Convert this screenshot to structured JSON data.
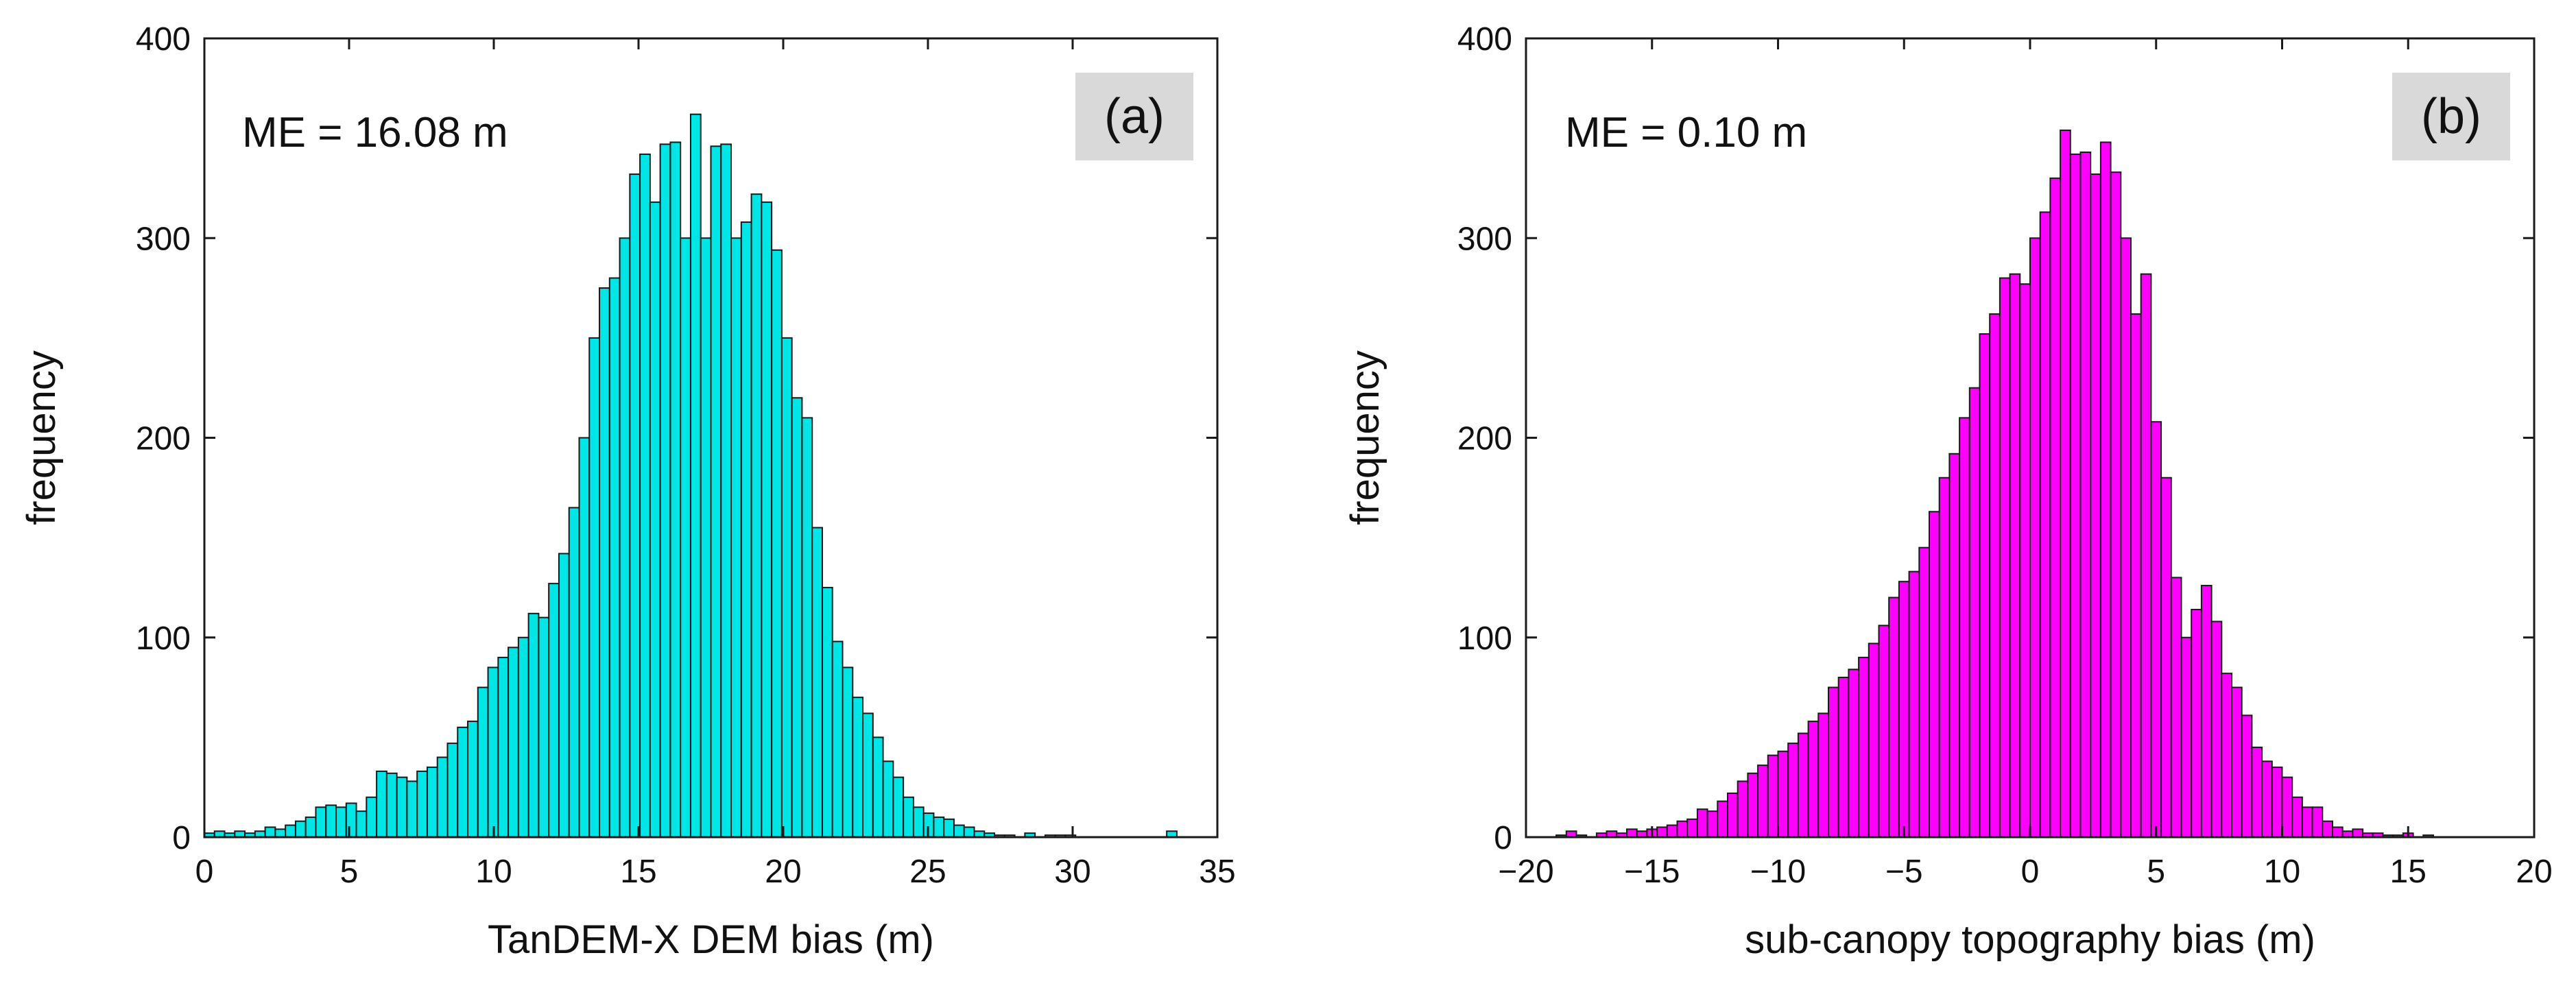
{
  "chart_data": [
    {
      "type": "bar",
      "subtype": "histogram",
      "panel_label": "(a)",
      "annotation": "ME = 16.08 m",
      "xlabel": "TanDEM-X DEM bias (m)",
      "ylabel": "frequency",
      "xlim": [
        0,
        35
      ],
      "ylim": [
        0,
        400
      ],
      "xticks": [
        0,
        5,
        10,
        15,
        20,
        25,
        30,
        35
      ],
      "xtick_labels": [
        "0",
        "5",
        "10",
        "15",
        "20",
        "25",
        "30",
        "35"
      ],
      "yticks": [
        0,
        100,
        200,
        300,
        400
      ],
      "ytick_labels": [
        "0",
        "100",
        "200",
        "300",
        "400"
      ],
      "bin_start": 0,
      "bin_width": 0.35,
      "color": "#00e5e5",
      "values": [
        2,
        3,
        2,
        3,
        2,
        3,
        5,
        4,
        6,
        8,
        10,
        15,
        16,
        15,
        17,
        13,
        20,
        33,
        32,
        30,
        28,
        33,
        35,
        40,
        47,
        55,
        58,
        75,
        85,
        90,
        95,
        100,
        112,
        110,
        127,
        142,
        165,
        200,
        250,
        275,
        280,
        300,
        332,
        342,
        318,
        347,
        348,
        300,
        362,
        300,
        346,
        347,
        300,
        308,
        322,
        318,
        294,
        250,
        220,
        210,
        155,
        125,
        98,
        85,
        70,
        62,
        50,
        38,
        30,
        20,
        15,
        12,
        10,
        9,
        6,
        5,
        3,
        2,
        1,
        1,
        0,
        2,
        0,
        1,
        1,
        1,
        0,
        0,
        0,
        0,
        0,
        0,
        0,
        0,
        0,
        3,
        0,
        0,
        0,
        0
      ]
    },
    {
      "type": "bar",
      "subtype": "histogram",
      "panel_label": "(b)",
      "annotation": "ME = 0.10 m",
      "xlabel": "sub-canopy topography bias (m)",
      "ylabel": "frequency",
      "xlim": [
        -20,
        20
      ],
      "ylim": [
        0,
        400
      ],
      "xticks": [
        -20,
        -15,
        -10,
        -5,
        0,
        5,
        10,
        15,
        20
      ],
      "xtick_labels": [
        "−20",
        "−15",
        "−10",
        "−5",
        "0",
        "5",
        "10",
        "15",
        "20"
      ],
      "yticks": [
        0,
        100,
        200,
        300,
        400
      ],
      "ytick_labels": [
        "0",
        "100",
        "200",
        "300",
        "400"
      ],
      "bin_start": -20,
      "bin_width": 0.4,
      "color": "#ff00ff",
      "values": [
        0,
        0,
        0,
        1,
        3,
        1,
        0,
        2,
        3,
        2,
        4,
        3,
        4,
        5,
        6,
        8,
        9,
        14,
        13,
        18,
        22,
        28,
        32,
        36,
        41,
        43,
        47,
        52,
        58,
        62,
        75,
        80,
        84,
        90,
        97,
        106,
        120,
        128,
        133,
        145,
        163,
        180,
        192,
        210,
        225,
        252,
        262,
        280,
        282,
        277,
        300,
        313,
        330,
        354,
        342,
        343,
        332,
        348,
        333,
        300,
        262,
        282,
        208,
        180,
        130,
        100,
        114,
        126,
        108,
        82,
        75,
        61,
        45,
        38,
        35,
        30,
        20,
        15,
        15,
        8,
        5,
        3,
        4,
        2,
        2,
        1,
        1,
        2,
        0,
        1,
        0,
        0,
        0,
        0,
        0,
        0,
        0,
        0,
        0,
        0
      ]
    }
  ]
}
